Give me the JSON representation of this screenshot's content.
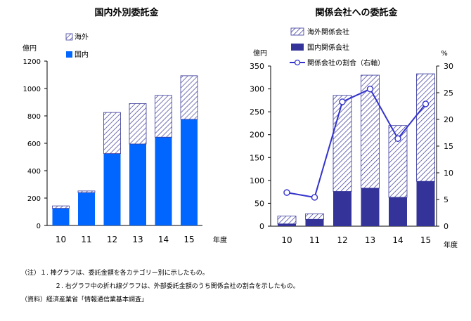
{
  "chart_data": [
    {
      "type": "bar",
      "stacked": true,
      "title": "国内外別委託金",
      "ylabel": "億円",
      "xlabel": "年度",
      "categories": [
        "10",
        "11",
        "12",
        "13",
        "14",
        "15"
      ],
      "ylim": [
        0,
        1200
      ],
      "yticks": [
        "0",
        "200",
        "400",
        "600",
        "800",
        "1000",
        "1200"
      ],
      "series": [
        {
          "name": "国内",
          "values": [
            125,
            240,
            525,
            595,
            645,
            775
          ]
        },
        {
          "name": "海外",
          "values": [
            18,
            12,
            300,
            295,
            305,
            318
          ]
        }
      ],
      "legend": [
        "海外",
        "国内"
      ],
      "grid": false,
      "legend_position": "top-right"
    },
    {
      "type": "bar",
      "stacked": true,
      "title": "関係会社への委託金",
      "ylabel": "億円",
      "y2label": "%",
      "xlabel": "年度",
      "categories": [
        "10",
        "11",
        "12",
        "13",
        "14",
        "15"
      ],
      "ylim": [
        0,
        350
      ],
      "y2lim": [
        0,
        30
      ],
      "yticks": [
        "0",
        "50",
        "100",
        "150",
        "200",
        "250",
        "300",
        "350"
      ],
      "y2ticks": [
        "0",
        "5",
        "10",
        "15",
        "20",
        "25",
        "30"
      ],
      "series": [
        {
          "name": "国内関係会社",
          "values": [
            5,
            15,
            76,
            83,
            63,
            98
          ]
        },
        {
          "name": "海外関係会社",
          "values": [
            17,
            12,
            210,
            247,
            157,
            235
          ]
        }
      ],
      "line_series": {
        "name": "関係会社の割合（右軸）",
        "axis": "right",
        "values": [
          6.3,
          5.4,
          23.3,
          25.7,
          16.4,
          22.9
        ]
      },
      "legend": [
        "海外関係会社",
        "国内関係会社",
        "関係会社の割合（右軸）"
      ],
      "grid": false,
      "legend_position": "top-left"
    }
  ],
  "notes": {
    "line1": "（注）１. 棒グラフは、委託金額を各カテゴリー別に示したもの。",
    "line2": "２. 右グラフ中の折れ線グラフは、外部委託金額のうち関係会社の割合を示したもの。",
    "line3": "（資料）経済産業省「情報通信業基本調査」"
  },
  "colors": {
    "domestic": "#0066ff",
    "foreign_hatch": "#3a3a9a",
    "related_domestic": "#333399",
    "related_foreign_hatch": "#333399",
    "ratio_line": "#3333cc",
    "axis": "#000000"
  }
}
